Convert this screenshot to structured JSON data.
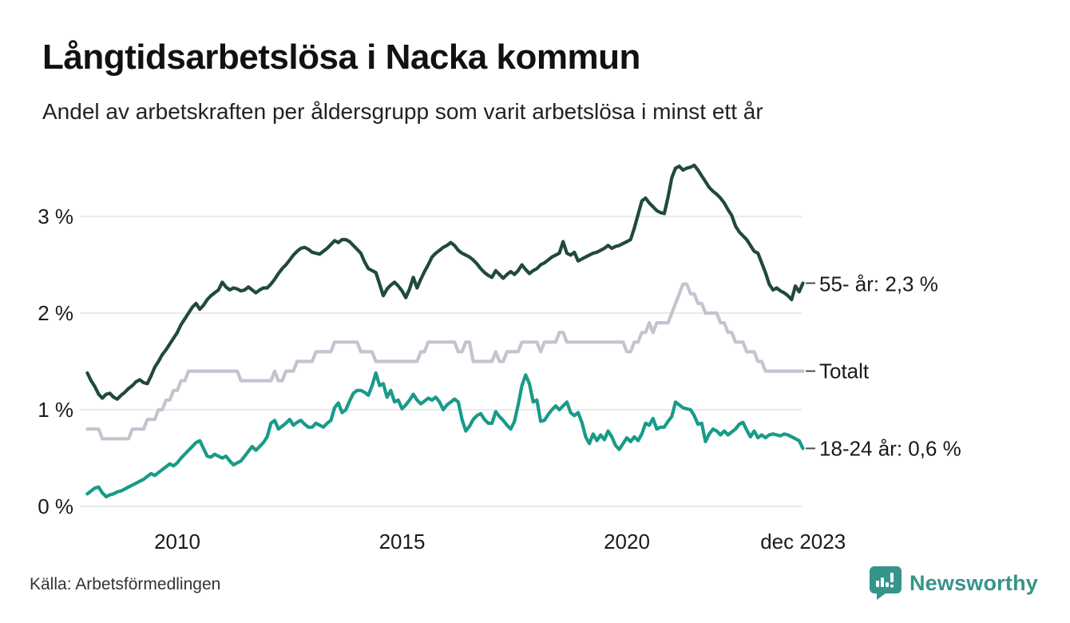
{
  "header": {
    "title": "Långtidsarbetslösa i Nacka kommun",
    "subtitle": "Andel av arbetskraften per åldersgrupp som varit arbetslösa i minst ett år"
  },
  "footer": {
    "source": "Källa: Arbetsförmedlingen",
    "logo_text": "Newsworthy"
  },
  "colors": {
    "series_55": "#20493f",
    "series_total": "#c5c3d0",
    "series_1824": "#189b88",
    "grid": "#e4e4e7",
    "axis_text": "#1a1a1a",
    "end_tick": "#4d4d4d",
    "logo_teal": "#37948a"
  },
  "chart_data": {
    "type": "line",
    "title": "Långtidsarbetslösa i Nacka kommun",
    "subtitle": "Andel av arbetskraften per åldersgrupp som varit arbetslösa i minst ett år",
    "x_start_year": 2008,
    "points_per_year": 12,
    "xlim": [
      2008.0,
      2023.92
    ],
    "ylim": [
      0,
      3.6
    ],
    "grid": true,
    "x_ticks": [
      {
        "label": "2010",
        "year": 2010
      },
      {
        "label": "2015",
        "year": 2015
      },
      {
        "label": "2020",
        "year": 2020
      },
      {
        "label": "dec 2023",
        "year": 2023.92
      }
    ],
    "y_ticks": [
      {
        "label": "3 %",
        "value": 3
      },
      {
        "label": "2 %",
        "value": 2
      },
      {
        "label": "1 %",
        "value": 1
      },
      {
        "label": "0 %",
        "value": 0
      }
    ],
    "series": [
      {
        "name": "55- år",
        "end_label": "55- år: 2,3 %",
        "last_value_label": "2,3 %",
        "color": "#20493f",
        "values": [
          1.38,
          1.3,
          1.24,
          1.16,
          1.12,
          1.16,
          1.17,
          1.13,
          1.11,
          1.15,
          1.18,
          1.22,
          1.25,
          1.29,
          1.31,
          1.28,
          1.27,
          1.35,
          1.44,
          1.5,
          1.57,
          1.62,
          1.68,
          1.74,
          1.8,
          1.88,
          1.94,
          2.0,
          2.06,
          2.1,
          2.04,
          2.08,
          2.14,
          2.18,
          2.21,
          2.24,
          2.32,
          2.27,
          2.24,
          2.26,
          2.25,
          2.23,
          2.24,
          2.27,
          2.24,
          2.21,
          2.24,
          2.26,
          2.26,
          2.3,
          2.35,
          2.41,
          2.46,
          2.5,
          2.55,
          2.6,
          2.64,
          2.67,
          2.68,
          2.66,
          2.63,
          2.62,
          2.61,
          2.64,
          2.67,
          2.71,
          2.75,
          2.73,
          2.76,
          2.76,
          2.74,
          2.7,
          2.66,
          2.62,
          2.53,
          2.46,
          2.44,
          2.42,
          2.3,
          2.18,
          2.25,
          2.29,
          2.32,
          2.28,
          2.23,
          2.16,
          2.25,
          2.37,
          2.26,
          2.35,
          2.43,
          2.5,
          2.58,
          2.62,
          2.65,
          2.68,
          2.7,
          2.73,
          2.7,
          2.65,
          2.62,
          2.6,
          2.58,
          2.55,
          2.51,
          2.46,
          2.42,
          2.39,
          2.37,
          2.44,
          2.4,
          2.36,
          2.4,
          2.43,
          2.4,
          2.44,
          2.5,
          2.45,
          2.41,
          2.44,
          2.46,
          2.5,
          2.52,
          2.55,
          2.58,
          2.6,
          2.62,
          2.74,
          2.62,
          2.6,
          2.63,
          2.54,
          2.56,
          2.58,
          2.6,
          2.62,
          2.63,
          2.65,
          2.67,
          2.7,
          2.67,
          2.69,
          2.7,
          2.72,
          2.74,
          2.76,
          2.88,
          3.02,
          3.16,
          3.19,
          3.14,
          3.1,
          3.06,
          3.04,
          3.03,
          3.2,
          3.4,
          3.5,
          3.52,
          3.48,
          3.5,
          3.51,
          3.53,
          3.48,
          3.42,
          3.36,
          3.3,
          3.26,
          3.23,
          3.19,
          3.14,
          3.07,
          3.01,
          2.9,
          2.84,
          2.8,
          2.76,
          2.7,
          2.64,
          2.62,
          2.52,
          2.42,
          2.3,
          2.24,
          2.26,
          2.23,
          2.21,
          2.18,
          2.14,
          2.28,
          2.22,
          2.31
        ]
      },
      {
        "name": "Totalt",
        "end_label": "Totalt",
        "last_value_label": "1,4 %",
        "color": "#c5c3d0",
        "values": [
          0.8,
          0.8,
          0.8,
          0.8,
          0.7,
          0.7,
          0.7,
          0.7,
          0.7,
          0.7,
          0.7,
          0.7,
          0.8,
          0.8,
          0.8,
          0.8,
          0.9,
          0.9,
          0.9,
          1.0,
          1.0,
          1.1,
          1.1,
          1.2,
          1.2,
          1.3,
          1.3,
          1.4,
          1.4,
          1.4,
          1.4,
          1.4,
          1.4,
          1.4,
          1.4,
          1.4,
          1.4,
          1.4,
          1.4,
          1.4,
          1.4,
          1.3,
          1.3,
          1.3,
          1.3,
          1.3,
          1.3,
          1.3,
          1.3,
          1.3,
          1.4,
          1.3,
          1.3,
          1.4,
          1.4,
          1.4,
          1.5,
          1.5,
          1.5,
          1.5,
          1.5,
          1.6,
          1.6,
          1.6,
          1.6,
          1.6,
          1.7,
          1.7,
          1.7,
          1.7,
          1.7,
          1.7,
          1.7,
          1.6,
          1.6,
          1.6,
          1.6,
          1.5,
          1.5,
          1.5,
          1.5,
          1.5,
          1.5,
          1.5,
          1.5,
          1.5,
          1.5,
          1.5,
          1.5,
          1.6,
          1.6,
          1.7,
          1.7,
          1.7,
          1.7,
          1.7,
          1.7,
          1.7,
          1.7,
          1.6,
          1.6,
          1.7,
          1.7,
          1.5,
          1.5,
          1.5,
          1.5,
          1.5,
          1.5,
          1.6,
          1.5,
          1.5,
          1.6,
          1.6,
          1.6,
          1.6,
          1.7,
          1.7,
          1.7,
          1.7,
          1.7,
          1.6,
          1.7,
          1.7,
          1.7,
          1.7,
          1.8,
          1.8,
          1.7,
          1.7,
          1.7,
          1.7,
          1.7,
          1.7,
          1.7,
          1.7,
          1.7,
          1.7,
          1.7,
          1.7,
          1.7,
          1.7,
          1.7,
          1.7,
          1.6,
          1.6,
          1.7,
          1.7,
          1.8,
          1.8,
          1.9,
          1.8,
          1.9,
          1.9,
          1.9,
          1.9,
          2.0,
          2.1,
          2.2,
          2.3,
          2.3,
          2.2,
          2.2,
          2.1,
          2.1,
          2.0,
          2.0,
          2.0,
          2.0,
          1.9,
          1.9,
          1.8,
          1.8,
          1.7,
          1.7,
          1.7,
          1.6,
          1.6,
          1.6,
          1.5,
          1.5,
          1.4,
          1.4,
          1.4,
          1.4,
          1.4,
          1.4,
          1.4,
          1.4,
          1.4,
          1.4,
          1.4
        ]
      },
      {
        "name": "18-24 år",
        "end_label": "18-24 år: 0,6 %",
        "last_value_label": "0,6 %",
        "color": "#189b88",
        "values": [
          0.13,
          0.16,
          0.19,
          0.2,
          0.14,
          0.1,
          0.12,
          0.13,
          0.15,
          0.16,
          0.18,
          0.2,
          0.22,
          0.24,
          0.26,
          0.28,
          0.31,
          0.34,
          0.32,
          0.35,
          0.38,
          0.41,
          0.44,
          0.42,
          0.45,
          0.5,
          0.54,
          0.58,
          0.62,
          0.66,
          0.68,
          0.6,
          0.52,
          0.51,
          0.54,
          0.52,
          0.5,
          0.52,
          0.47,
          0.43,
          0.45,
          0.47,
          0.52,
          0.57,
          0.62,
          0.58,
          0.62,
          0.66,
          0.72,
          0.86,
          0.89,
          0.8,
          0.83,
          0.86,
          0.9,
          0.84,
          0.87,
          0.89,
          0.85,
          0.82,
          0.82,
          0.86,
          0.84,
          0.82,
          0.86,
          0.89,
          1.02,
          1.07,
          0.97,
          1.0,
          1.09,
          1.17,
          1.2,
          1.2,
          1.18,
          1.15,
          1.25,
          1.38,
          1.25,
          1.27,
          1.13,
          1.2,
          1.08,
          1.1,
          1.01,
          1.05,
          1.1,
          1.16,
          1.1,
          1.06,
          1.09,
          1.12,
          1.1,
          1.13,
          1.08,
          1.0,
          1.05,
          1.08,
          1.11,
          1.08,
          0.9,
          0.78,
          0.83,
          0.9,
          0.94,
          0.96,
          0.9,
          0.86,
          0.86,
          0.98,
          0.93,
          0.89,
          0.84,
          0.8,
          0.88,
          1.05,
          1.25,
          1.36,
          1.27,
          1.08,
          1.1,
          0.88,
          0.89,
          0.95,
          1.0,
          1.04,
          1.0,
          1.04,
          1.08,
          0.97,
          0.94,
          0.97,
          0.87,
          0.72,
          0.65,
          0.75,
          0.68,
          0.74,
          0.69,
          0.78,
          0.72,
          0.63,
          0.59,
          0.65,
          0.71,
          0.67,
          0.72,
          0.68,
          0.75,
          0.86,
          0.84,
          0.91,
          0.8,
          0.82,
          0.82,
          0.88,
          0.93,
          1.08,
          1.05,
          1.02,
          1.01,
          1.0,
          0.94,
          0.85,
          0.86,
          0.67,
          0.75,
          0.8,
          0.78,
          0.74,
          0.78,
          0.74,
          0.77,
          0.8,
          0.85,
          0.87,
          0.79,
          0.72,
          0.78,
          0.71,
          0.74,
          0.71,
          0.74,
          0.75,
          0.74,
          0.73,
          0.75,
          0.74,
          0.72,
          0.7,
          0.68,
          0.6
        ]
      }
    ]
  }
}
